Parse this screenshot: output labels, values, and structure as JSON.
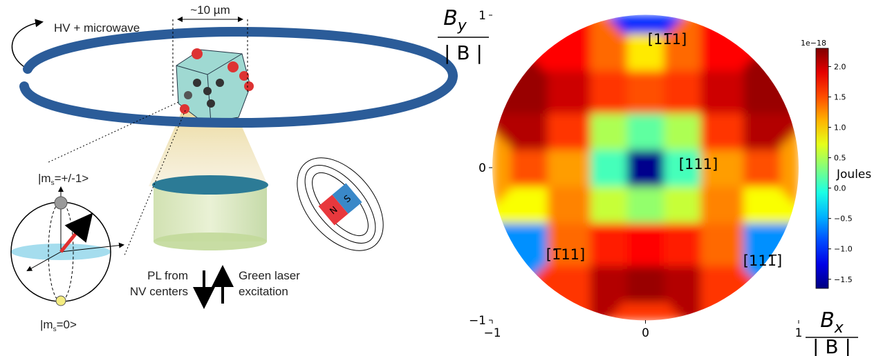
{
  "diagram": {
    "hv_label": "HV + microwave",
    "scale_label": "~10 µm",
    "state_top": {
      "prefix": "|m",
      "sub": "s",
      "suffix": "=+/-1>"
    },
    "state_bottom": {
      "prefix": "|m",
      "sub": "s",
      "suffix": "=0>"
    },
    "pl_label": [
      "PL from",
      "NV centers"
    ],
    "laser_label": [
      "Green laser",
      "excitation"
    ],
    "magnet": {
      "north": "N",
      "south": "S"
    }
  },
  "chart_data": {
    "type": "heatmap",
    "colormap": "jet",
    "x": [
      -1,
      -0.75,
      -0.5,
      -0.25,
      0,
      0.25,
      0.5,
      0.75,
      1
    ],
    "y": [
      -1,
      -0.75,
      -0.5,
      -0.25,
      0,
      0.25,
      0.5,
      0.75,
      1
    ],
    "z": [
      [
        null,
        null,
        null,
        null,
        1.6,
        null,
        null,
        null,
        null
      ],
      [
        null,
        null,
        1.6,
        2.1,
        2.2,
        2.1,
        1.6,
        null,
        null
      ],
      [
        null,
        -0.6,
        1.4,
        1.7,
        1.8,
        1.7,
        1.4,
        -0.6,
        null
      ],
      [
        null,
        0.8,
        1.3,
        0.6,
        0.4,
        0.6,
        1.3,
        0.8,
        null
      ],
      [
        1.2,
        1.5,
        1.2,
        0.1,
        -1.6,
        0.1,
        1.2,
        1.5,
        1.2
      ],
      [
        null,
        2.1,
        1.6,
        0.5,
        0.2,
        0.5,
        1.6,
        2.1,
        null
      ],
      [
        null,
        2.2,
        2.0,
        1.6,
        1.5,
        1.6,
        2.0,
        2.2,
        null
      ],
      [
        null,
        null,
        1.8,
        1.4,
        0.9,
        1.4,
        1.8,
        null,
        null
      ],
      [
        null,
        null,
        null,
        null,
        -1.0,
        null,
        null,
        null,
        null
      ]
    ],
    "xlim": [
      -1,
      1
    ],
    "ylim": [
      -1,
      1
    ],
    "xticks": [
      {
        "value": -1,
        "label": "−1"
      },
      0,
      1
    ],
    "yticks": [
      {
        "value": -1,
        "label": "−1"
      },
      0,
      1
    ],
    "x_label": {
      "symbol": "B",
      "sub": "x",
      "denominator": "| B |"
    },
    "y_label": {
      "symbol": "B",
      "sub": "y",
      "denominator": "| B |"
    },
    "annotations": [
      "[11̅1]",
      "[111]",
      "[1̅11]",
      "[111̅]"
    ],
    "colorbar": {
      "clim": [
        -1.65,
        2.3
      ],
      "label": "Joules",
      "offset_label": "1e−18",
      "ticks": [
        {
          "value": -1.5,
          "label": "−1.5"
        },
        {
          "value": -1.0,
          "label": "−1.0"
        },
        {
          "value": -0.5,
          "label": "−0.5"
        },
        {
          "value": 0,
          "label": "0.0"
        },
        0.5,
        {
          "value": 1,
          "label": "1.0"
        },
        1.5,
        {
          "value": 2,
          "label": "2.0"
        }
      ]
    }
  }
}
